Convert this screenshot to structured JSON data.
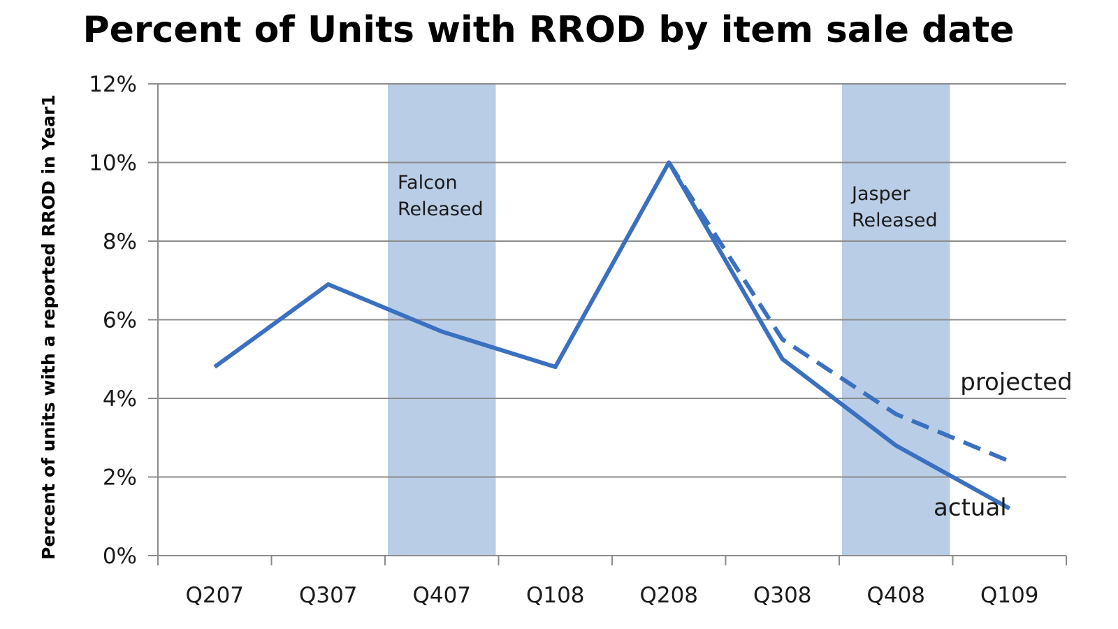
{
  "colors": {
    "series": "#3a70c0",
    "band": "#b9cde6",
    "grid": "#8c8c8c"
  },
  "chart_data": {
    "type": "line",
    "title": "Percent of Units with RROD by item sale date",
    "subtitle": "",
    "xlabel": "",
    "ylabel": "Percent of units with a reported RROD in Year1",
    "categories": [
      "Q207",
      "Q307",
      "Q407",
      "Q108",
      "Q208",
      "Q308",
      "Q408",
      "Q109"
    ],
    "y_ticks": [
      "0%",
      "2%",
      "4%",
      "6%",
      "8%",
      "10%",
      "12%"
    ],
    "ylim": [
      0,
      12
    ],
    "grid": true,
    "series": [
      {
        "name": "actual",
        "style": "solid",
        "values": [
          4.8,
          6.9,
          5.7,
          4.8,
          10.0,
          5.0,
          2.8,
          1.2
        ]
      },
      {
        "name": "projected",
        "style": "dashed",
        "values": [
          null,
          null,
          null,
          null,
          10.0,
          5.5,
          3.6,
          2.4
        ]
      }
    ],
    "annotations": [
      {
        "type": "band",
        "label_lines": [
          "Falcon",
          "Released"
        ],
        "x_range": [
          "Q407",
          "Q407"
        ]
      },
      {
        "type": "band",
        "label_lines": [
          "Jasper",
          "Released"
        ],
        "x_range": [
          "Q408",
          "Q408"
        ]
      }
    ]
  }
}
